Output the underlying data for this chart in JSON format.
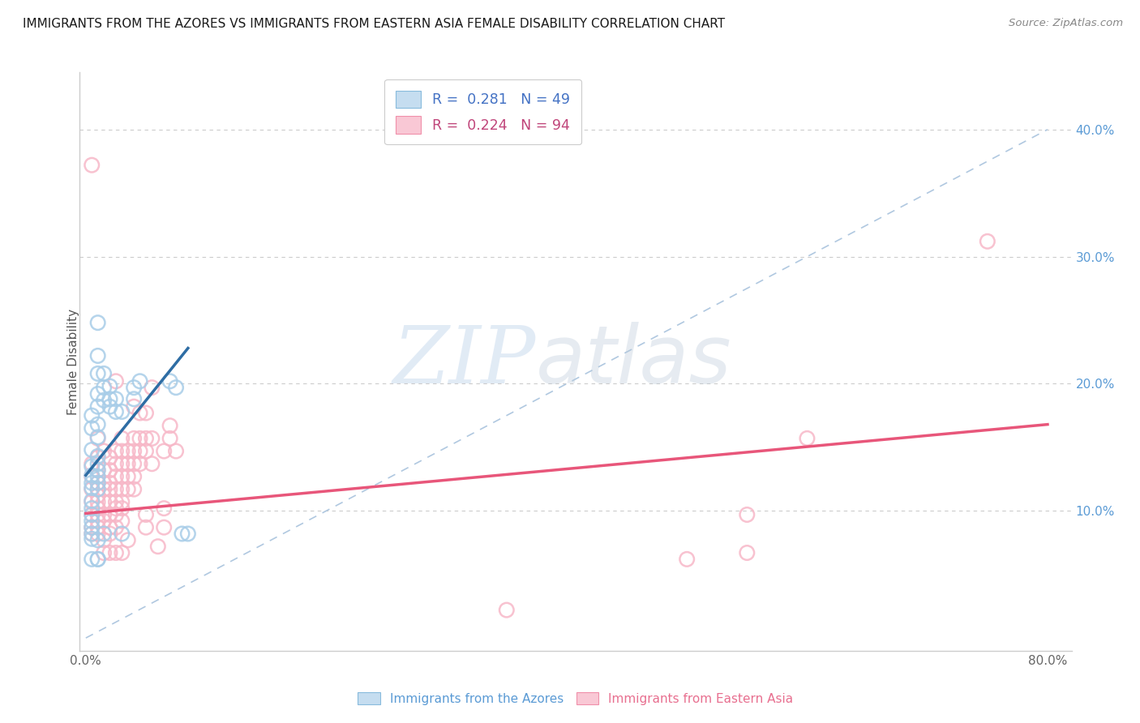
{
  "title": "IMMIGRANTS FROM THE AZORES VS IMMIGRANTS FROM EASTERN ASIA FEMALE DISABILITY CORRELATION CHART",
  "source": "Source: ZipAtlas.com",
  "ylabel": "Female Disability",
  "x_tick_labels": [
    "0.0%",
    "",
    "",
    "",
    "",
    "",
    "",
    "",
    "80.0%"
  ],
  "x_tick_vals": [
    0,
    0.1,
    0.2,
    0.3,
    0.4,
    0.5,
    0.6,
    0.7,
    0.8
  ],
  "y_tick_labels": [
    "10.0%",
    "20.0%",
    "30.0%",
    "40.0%"
  ],
  "y_tick_vals": [
    0.1,
    0.2,
    0.3,
    0.4
  ],
  "xlim": [
    -0.005,
    0.82
  ],
  "ylim": [
    -0.01,
    0.445
  ],
  "watermark_zip": "ZIP",
  "watermark_atlas": "atlas",
  "legend_label_blue": "R =  0.281   N = 49",
  "legend_label_pink": "R =  0.224   N = 94",
  "legend_label_blue_short": "Immigrants from the Azores",
  "legend_label_pink_short": "Immigrants from Eastern Asia",
  "blue_color": "#a8cde8",
  "pink_color": "#f7b8c8",
  "blue_line_color": "#2e6da4",
  "pink_line_color": "#e8567a",
  "blue_scatter": [
    [
      0.005,
      0.175
    ],
    [
      0.005,
      0.165
    ],
    [
      0.005,
      0.135
    ],
    [
      0.005,
      0.148
    ],
    [
      0.005,
      0.128
    ],
    [
      0.005,
      0.122
    ],
    [
      0.005,
      0.118
    ],
    [
      0.005,
      0.108
    ],
    [
      0.005,
      0.102
    ],
    [
      0.005,
      0.097
    ],
    [
      0.005,
      0.092
    ],
    [
      0.005,
      0.087
    ],
    [
      0.005,
      0.082
    ],
    [
      0.005,
      0.078
    ],
    [
      0.01,
      0.248
    ],
    [
      0.01,
      0.222
    ],
    [
      0.01,
      0.208
    ],
    [
      0.01,
      0.192
    ],
    [
      0.01,
      0.182
    ],
    [
      0.01,
      0.168
    ],
    [
      0.01,
      0.158
    ],
    [
      0.01,
      0.143
    ],
    [
      0.01,
      0.137
    ],
    [
      0.01,
      0.132
    ],
    [
      0.01,
      0.127
    ],
    [
      0.01,
      0.122
    ],
    [
      0.01,
      0.117
    ],
    [
      0.01,
      0.077
    ],
    [
      0.015,
      0.208
    ],
    [
      0.015,
      0.197
    ],
    [
      0.015,
      0.187
    ],
    [
      0.015,
      0.082
    ],
    [
      0.02,
      0.198
    ],
    [
      0.02,
      0.188
    ],
    [
      0.02,
      0.182
    ],
    [
      0.025,
      0.188
    ],
    [
      0.025,
      0.178
    ],
    [
      0.03,
      0.178
    ],
    [
      0.03,
      0.082
    ],
    [
      0.04,
      0.197
    ],
    [
      0.04,
      0.188
    ],
    [
      0.045,
      0.202
    ],
    [
      0.005,
      0.062
    ],
    [
      0.01,
      0.062
    ],
    [
      0.01,
      0.062
    ],
    [
      0.07,
      0.202
    ],
    [
      0.075,
      0.197
    ],
    [
      0.08,
      0.082
    ],
    [
      0.085,
      0.082
    ]
  ],
  "pink_scatter": [
    [
      0.005,
      0.372
    ],
    [
      0.005,
      0.137
    ],
    [
      0.005,
      0.127
    ],
    [
      0.005,
      0.117
    ],
    [
      0.005,
      0.107
    ],
    [
      0.005,
      0.097
    ],
    [
      0.005,
      0.087
    ],
    [
      0.005,
      0.082
    ],
    [
      0.01,
      0.157
    ],
    [
      0.01,
      0.142
    ],
    [
      0.01,
      0.132
    ],
    [
      0.01,
      0.122
    ],
    [
      0.01,
      0.117
    ],
    [
      0.01,
      0.112
    ],
    [
      0.01,
      0.107
    ],
    [
      0.01,
      0.102
    ],
    [
      0.01,
      0.097
    ],
    [
      0.01,
      0.092
    ],
    [
      0.01,
      0.087
    ],
    [
      0.01,
      0.082
    ],
    [
      0.015,
      0.147
    ],
    [
      0.015,
      0.132
    ],
    [
      0.015,
      0.122
    ],
    [
      0.015,
      0.117
    ],
    [
      0.015,
      0.107
    ],
    [
      0.015,
      0.097
    ],
    [
      0.015,
      0.092
    ],
    [
      0.015,
      0.077
    ],
    [
      0.015,
      0.067
    ],
    [
      0.02,
      0.142
    ],
    [
      0.02,
      0.132
    ],
    [
      0.02,
      0.122
    ],
    [
      0.02,
      0.117
    ],
    [
      0.02,
      0.107
    ],
    [
      0.02,
      0.097
    ],
    [
      0.02,
      0.087
    ],
    [
      0.02,
      0.082
    ],
    [
      0.02,
      0.067
    ],
    [
      0.025,
      0.202
    ],
    [
      0.025,
      0.147
    ],
    [
      0.025,
      0.137
    ],
    [
      0.025,
      0.127
    ],
    [
      0.025,
      0.117
    ],
    [
      0.025,
      0.107
    ],
    [
      0.025,
      0.102
    ],
    [
      0.025,
      0.097
    ],
    [
      0.025,
      0.087
    ],
    [
      0.025,
      0.067
    ],
    [
      0.03,
      0.157
    ],
    [
      0.03,
      0.147
    ],
    [
      0.03,
      0.137
    ],
    [
      0.03,
      0.127
    ],
    [
      0.03,
      0.117
    ],
    [
      0.03,
      0.107
    ],
    [
      0.03,
      0.102
    ],
    [
      0.03,
      0.092
    ],
    [
      0.03,
      0.067
    ],
    [
      0.035,
      0.147
    ],
    [
      0.035,
      0.137
    ],
    [
      0.035,
      0.127
    ],
    [
      0.035,
      0.117
    ],
    [
      0.035,
      0.077
    ],
    [
      0.04,
      0.157
    ],
    [
      0.04,
      0.147
    ],
    [
      0.04,
      0.137
    ],
    [
      0.04,
      0.127
    ],
    [
      0.04,
      0.117
    ],
    [
      0.04,
      0.182
    ],
    [
      0.045,
      0.177
    ],
    [
      0.045,
      0.157
    ],
    [
      0.045,
      0.147
    ],
    [
      0.045,
      0.137
    ],
    [
      0.05,
      0.177
    ],
    [
      0.05,
      0.157
    ],
    [
      0.05,
      0.147
    ],
    [
      0.05,
      0.097
    ],
    [
      0.05,
      0.087
    ],
    [
      0.055,
      0.197
    ],
    [
      0.055,
      0.157
    ],
    [
      0.055,
      0.137
    ],
    [
      0.06,
      0.072
    ],
    [
      0.065,
      0.147
    ],
    [
      0.065,
      0.102
    ],
    [
      0.065,
      0.087
    ],
    [
      0.07,
      0.167
    ],
    [
      0.07,
      0.157
    ],
    [
      0.075,
      0.147
    ],
    [
      0.35,
      0.022
    ],
    [
      0.5,
      0.062
    ],
    [
      0.55,
      0.097
    ],
    [
      0.55,
      0.067
    ],
    [
      0.6,
      0.157
    ],
    [
      0.75,
      0.312
    ]
  ],
  "blue_line_x": [
    0.0,
    0.085
  ],
  "blue_line_y": [
    0.128,
    0.228
  ],
  "pink_line_x": [
    0.0,
    0.8
  ],
  "pink_line_y": [
    0.098,
    0.168
  ],
  "diag_line_x": [
    0.0,
    0.8
  ],
  "diag_line_y": [
    0.0,
    0.4
  ]
}
